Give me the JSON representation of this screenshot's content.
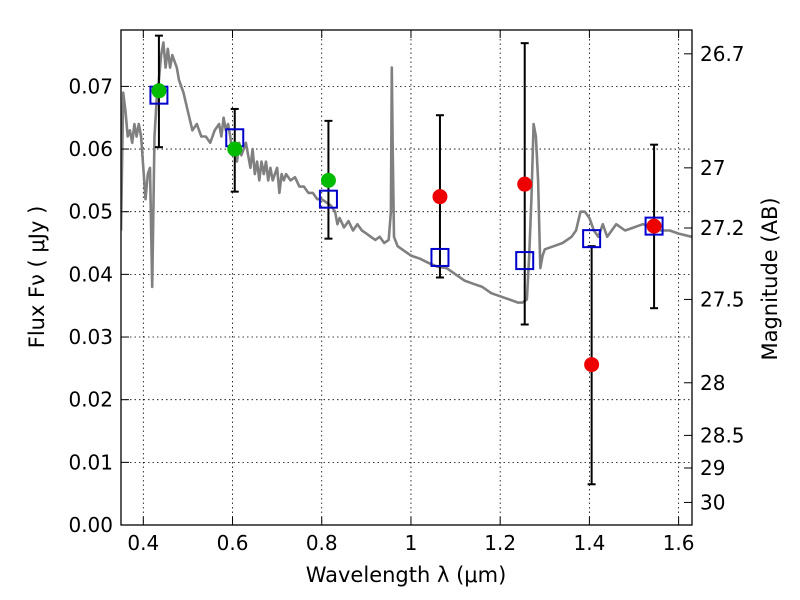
{
  "chart_data": {
    "type": "scatter",
    "title": "",
    "xlabel": "Wavelength  λ (μm)",
    "ylabel": "Flux  Fν  ( μJy )",
    "y2label": "Magnitude (AB)",
    "xlim": [
      0.35,
      1.63
    ],
    "ylim": [
      0.0,
      0.079
    ],
    "grid": true,
    "x_ticks": [
      0.4,
      0.6,
      0.8,
      1.0,
      1.2,
      1.4,
      1.6
    ],
    "x_tick_labels": [
      "0.4",
      "0.6",
      "0.8",
      "1",
      "1.2",
      "1.4",
      "1.6"
    ],
    "y_ticks": [
      0.0,
      0.01,
      0.02,
      0.03,
      0.04,
      0.05,
      0.06,
      0.07
    ],
    "y_tick_labels": [
      "0.00",
      "0.01",
      "0.02",
      "0.03",
      "0.04",
      "0.05",
      "0.06",
      "0.07"
    ],
    "right_axis_ticks": [
      {
        "label": "26.7",
        "flux": 0.0752
      },
      {
        "label": "27",
        "flux": 0.057
      },
      {
        "label": "27.2",
        "flux": 0.0474
      },
      {
        "label": "27.5",
        "flux": 0.036
      },
      {
        "label": "28",
        "flux": 0.0227
      },
      {
        "label": "28.5",
        "flux": 0.0143
      },
      {
        "label": "29",
        "flux": 0.0091
      },
      {
        "label": "30",
        "flux": 0.0036
      }
    ],
    "series": [
      {
        "name": "model spectrum",
        "kind": "line",
        "color": "#808080",
        "points": [
          [
            0.35,
            0.047
          ],
          [
            0.355,
            0.069
          ],
          [
            0.36,
            0.066
          ],
          [
            0.365,
            0.062
          ],
          [
            0.37,
            0.063
          ],
          [
            0.375,
            0.061
          ],
          [
            0.38,
            0.064
          ],
          [
            0.385,
            0.062
          ],
          [
            0.39,
            0.064
          ],
          [
            0.395,
            0.062
          ],
          [
            0.4,
            0.057
          ],
          [
            0.405,
            0.052
          ],
          [
            0.41,
            0.056
          ],
          [
            0.415,
            0.057
          ],
          [
            0.42,
            0.038
          ],
          [
            0.425,
            0.062
          ],
          [
            0.43,
            0.068
          ],
          [
            0.435,
            0.071
          ],
          [
            0.44,
            0.075
          ],
          [
            0.445,
            0.077
          ],
          [
            0.45,
            0.073
          ],
          [
            0.455,
            0.076
          ],
          [
            0.46,
            0.073
          ],
          [
            0.465,
            0.075
          ],
          [
            0.47,
            0.074
          ],
          [
            0.475,
            0.073
          ],
          [
            0.48,
            0.071
          ],
          [
            0.49,
            0.069
          ],
          [
            0.5,
            0.066
          ],
          [
            0.51,
            0.063
          ],
          [
            0.52,
            0.064
          ],
          [
            0.53,
            0.062
          ],
          [
            0.54,
            0.062
          ],
          [
            0.55,
            0.061
          ],
          [
            0.56,
            0.063
          ],
          [
            0.57,
            0.064
          ],
          [
            0.575,
            0.062
          ],
          [
            0.58,
            0.065
          ],
          [
            0.585,
            0.063
          ],
          [
            0.59,
            0.064
          ],
          [
            0.595,
            0.062
          ],
          [
            0.6,
            0.059
          ],
          [
            0.605,
            0.061
          ],
          [
            0.61,
            0.058
          ],
          [
            0.615,
            0.061
          ],
          [
            0.62,
            0.059
          ],
          [
            0.625,
            0.06
          ],
          [
            0.63,
            0.061
          ],
          [
            0.64,
            0.057
          ],
          [
            0.645,
            0.06
          ],
          [
            0.65,
            0.056
          ],
          [
            0.655,
            0.058
          ],
          [
            0.66,
            0.055
          ],
          [
            0.665,
            0.058
          ],
          [
            0.67,
            0.056
          ],
          [
            0.675,
            0.058
          ],
          [
            0.68,
            0.055
          ],
          [
            0.685,
            0.057
          ],
          [
            0.69,
            0.055
          ],
          [
            0.695,
            0.056
          ],
          [
            0.7,
            0.057
          ],
          [
            0.705,
            0.053
          ],
          [
            0.71,
            0.056
          ],
          [
            0.715,
            0.055
          ],
          [
            0.72,
            0.056
          ],
          [
            0.73,
            0.055
          ],
          [
            0.74,
            0.0555
          ],
          [
            0.75,
            0.054
          ],
          [
            0.76,
            0.054
          ],
          [
            0.77,
            0.053
          ],
          [
            0.78,
            0.053
          ],
          [
            0.79,
            0.052
          ],
          [
            0.8,
            0.052
          ],
          [
            0.81,
            0.0515
          ],
          [
            0.82,
            0.051
          ],
          [
            0.83,
            0.05
          ],
          [
            0.835,
            0.048
          ],
          [
            0.84,
            0.049
          ],
          [
            0.85,
            0.0475
          ],
          [
            0.86,
            0.0485
          ],
          [
            0.87,
            0.047
          ],
          [
            0.88,
            0.048
          ],
          [
            0.89,
            0.047
          ],
          [
            0.9,
            0.0465
          ],
          [
            0.91,
            0.046
          ],
          [
            0.92,
            0.0455
          ],
          [
            0.93,
            0.046
          ],
          [
            0.94,
            0.045
          ],
          [
            0.95,
            0.0455
          ],
          [
            0.955,
            0.05
          ],
          [
            0.957,
            0.073
          ],
          [
            0.959,
            0.06
          ],
          [
            0.962,
            0.046
          ],
          [
            0.97,
            0.0445
          ],
          [
            0.98,
            0.044
          ],
          [
            1.0,
            0.043
          ],
          [
            1.02,
            0.0425
          ],
          [
            1.04,
            0.0418
          ],
          [
            1.06,
            0.0412
          ],
          [
            1.08,
            0.041
          ],
          [
            1.1,
            0.04
          ],
          [
            1.12,
            0.039
          ],
          [
            1.14,
            0.0385
          ],
          [
            1.16,
            0.038
          ],
          [
            1.18,
            0.037
          ],
          [
            1.2,
            0.0365
          ],
          [
            1.22,
            0.036
          ],
          [
            1.24,
            0.0355
          ],
          [
            1.25,
            0.0355
          ],
          [
            1.26,
            0.036
          ],
          [
            1.265,
            0.043
          ],
          [
            1.27,
            0.052
          ],
          [
            1.275,
            0.064
          ],
          [
            1.28,
            0.062
          ],
          [
            1.285,
            0.055
          ],
          [
            1.29,
            0.041
          ],
          [
            1.295,
            0.043
          ],
          [
            1.3,
            0.044
          ],
          [
            1.32,
            0.0445
          ],
          [
            1.34,
            0.045
          ],
          [
            1.36,
            0.046
          ],
          [
            1.37,
            0.047
          ],
          [
            1.38,
            0.05
          ],
          [
            1.39,
            0.05
          ],
          [
            1.4,
            0.049
          ],
          [
            1.41,
            0.047
          ],
          [
            1.42,
            0.046
          ],
          [
            1.43,
            0.048
          ],
          [
            1.44,
            0.046
          ],
          [
            1.45,
            0.047
          ],
          [
            1.46,
            0.048
          ],
          [
            1.48,
            0.047
          ],
          [
            1.5,
            0.0475
          ],
          [
            1.52,
            0.048
          ],
          [
            1.54,
            0.0475
          ],
          [
            1.56,
            0.047
          ],
          [
            1.58,
            0.047
          ],
          [
            1.6,
            0.0465
          ],
          [
            1.63,
            0.046
          ]
        ]
      },
      {
        "name": "model photometry",
        "kind": "square",
        "color": "#0000cc",
        "points": [
          [
            0.435,
            0.0686
          ],
          [
            0.605,
            0.0618
          ],
          [
            0.815,
            0.052
          ],
          [
            1.065,
            0.0427
          ],
          [
            1.255,
            0.0422
          ],
          [
            1.405,
            0.0457
          ],
          [
            1.545,
            0.0477
          ]
        ]
      },
      {
        "name": "observed flux (green)",
        "kind": "circle",
        "color": "#00bb00",
        "points": [
          [
            0.435,
            0.0693
          ],
          [
            0.605,
            0.06
          ],
          [
            0.815,
            0.055
          ]
        ]
      },
      {
        "name": "observed flux (red)",
        "kind": "circle",
        "color": "#ee0000",
        "points": [
          [
            1.065,
            0.0524
          ],
          [
            1.255,
            0.0544
          ],
          [
            1.405,
            0.0256
          ],
          [
            1.545,
            0.0477
          ]
        ]
      }
    ],
    "error_bars": [
      {
        "x": 0.435,
        "y": 0.0693,
        "lo": 0.0603,
        "hi": 0.0781
      },
      {
        "x": 0.605,
        "y": 0.06,
        "lo": 0.0532,
        "hi": 0.0664
      },
      {
        "x": 0.815,
        "y": 0.055,
        "lo": 0.0457,
        "hi": 0.0645
      },
      {
        "x": 1.065,
        "y": 0.0524,
        "lo": 0.0395,
        "hi": 0.0654
      },
      {
        "x": 1.255,
        "y": 0.0544,
        "lo": 0.032,
        "hi": 0.0769
      },
      {
        "x": 1.405,
        "y": 0.0256,
        "lo": 0.0065,
        "hi": 0.0445
      },
      {
        "x": 1.545,
        "y": 0.0477,
        "lo": 0.0346,
        "hi": 0.0607
      }
    ]
  }
}
